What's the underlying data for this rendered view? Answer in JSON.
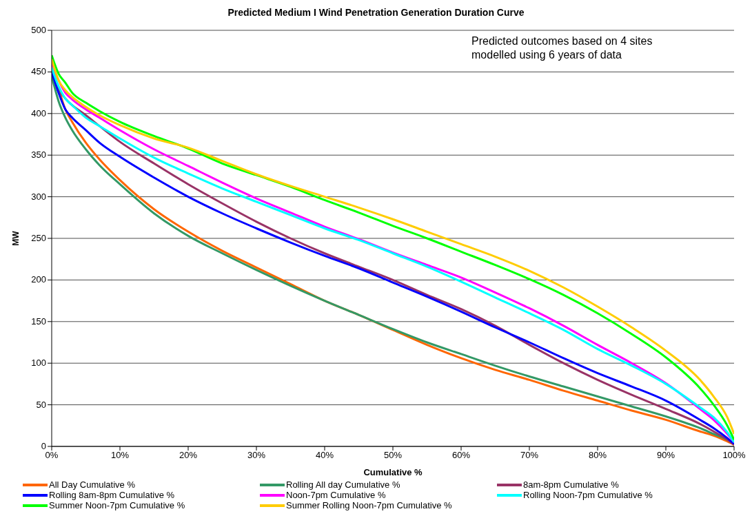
{
  "chart_data": {
    "type": "line",
    "title": "Predicted Medium I Wind Penetration Generation Duration Curve",
    "xlabel": "Cumulative %",
    "ylabel": "MW",
    "annotations": [
      "Predicted outcomes based on 4 sites modelled using 6 years of data"
    ],
    "x": [
      0,
      1,
      2,
      3,
      5,
      7,
      10,
      15,
      20,
      25,
      30,
      35,
      40,
      45,
      50,
      55,
      60,
      65,
      70,
      75,
      80,
      85,
      90,
      95,
      97,
      99,
      100
    ],
    "series": [
      {
        "name": "All Day Cumulative %",
        "color": "#ff6600",
        "values": [
          455,
          430,
          405,
          390,
          365,
          345,
          320,
          285,
          258,
          235,
          215,
          195,
          175,
          158,
          140,
          122,
          106,
          92,
          80,
          67,
          55,
          43,
          32,
          18,
          13,
          6,
          2
        ]
      },
      {
        "name": "Rolling All day Cumulative %",
        "color": "#339966",
        "values": [
          445,
          415,
          395,
          380,
          357,
          338,
          315,
          280,
          253,
          232,
          212,
          193,
          175,
          158,
          141,
          125,
          111,
          97,
          84,
          72,
          60,
          48,
          36,
          22,
          15,
          8,
          3
        ]
      },
      {
        "name": "8am-8pm Cumulative %",
        "color": "#993366",
        "values": [
          455,
          430,
          418,
          410,
          398,
          385,
          366,
          340,
          315,
          292,
          270,
          250,
          232,
          216,
          200,
          182,
          165,
          145,
          122,
          100,
          80,
          62,
          45,
          27,
          18,
          8,
          2
        ]
      },
      {
        "name": "Rolling 8am-8pm Cumulative %",
        "color": "#0000ff",
        "values": [
          450,
          425,
          405,
          395,
          380,
          365,
          348,
          323,
          300,
          280,
          262,
          245,
          229,
          214,
          197,
          180,
          162,
          143,
          125,
          106,
          88,
          72,
          55,
          32,
          22,
          10,
          3
        ]
      },
      {
        "name": "Noon-7pm Cumulative %",
        "color": "#ff00ff",
        "values": [
          460,
          440,
          425,
          417,
          405,
          395,
          380,
          357,
          337,
          317,
          298,
          281,
          264,
          249,
          233,
          218,
          203,
          185,
          166,
          145,
          122,
          100,
          76,
          45,
          32,
          15,
          5
        ]
      },
      {
        "name": "Rolling Noon-7pm Cumulative %",
        "color": "#00ffff",
        "values": [
          455,
          433,
          418,
          410,
          395,
          385,
          370,
          347,
          328,
          310,
          294,
          278,
          262,
          248,
          232,
          216,
          198,
          179,
          160,
          140,
          117,
          97,
          75,
          47,
          35,
          17,
          5
        ]
      },
      {
        "name": "Summer Noon-7pm Cumulative %",
        "color": "#00ff00",
        "values": [
          470,
          448,
          437,
          425,
          413,
          403,
          390,
          373,
          358,
          340,
          326,
          312,
          296,
          281,
          265,
          250,
          234,
          218,
          201,
          182,
          160,
          135,
          107,
          70,
          50,
          25,
          8
        ]
      },
      {
        "name": "Summer Rolling Noon-7pm Cumulative %",
        "color": "#ffcc00",
        "values": [
          465,
          440,
          428,
          420,
          408,
          398,
          386,
          370,
          359,
          343,
          327,
          313,
          300,
          287,
          273,
          258,
          243,
          228,
          211,
          191,
          168,
          143,
          115,
          80,
          60,
          35,
          15
        ]
      }
    ],
    "xlim": [
      0,
      100
    ],
    "xticks": [
      {
        "value": 0,
        "label": "0%"
      },
      {
        "value": 10,
        "label": "10%"
      },
      {
        "value": 20,
        "label": "20%"
      },
      {
        "value": 30,
        "label": "30%"
      },
      {
        "value": 40,
        "label": "40%"
      },
      {
        "value": 50,
        "label": "50%"
      },
      {
        "value": 60,
        "label": "60%"
      },
      {
        "value": 70,
        "label": "70%"
      },
      {
        "value": 80,
        "label": "80%"
      },
      {
        "value": 90,
        "label": "90%"
      },
      {
        "value": 100,
        "label": "100%"
      }
    ],
    "ylim": [
      0,
      500
    ],
    "yticks": [
      0,
      50,
      100,
      150,
      200,
      250,
      300,
      350,
      400,
      450,
      500
    ],
    "grid": "y",
    "legend": "bottom",
    "marker": "none",
    "line_style": "solid"
  }
}
